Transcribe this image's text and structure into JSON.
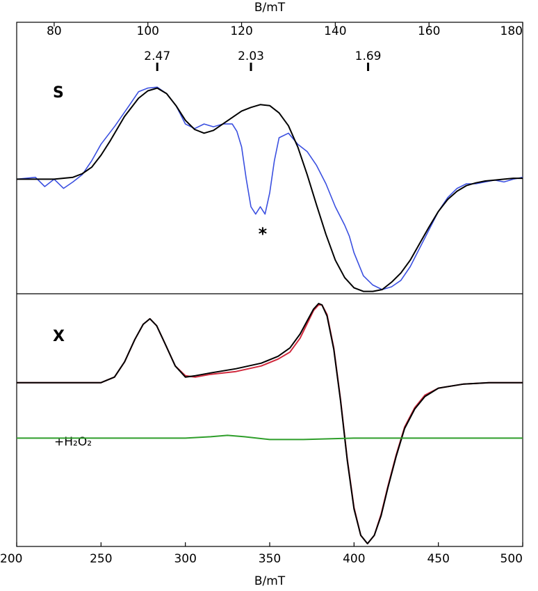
{
  "chart_data": [
    {
      "panel": "S",
      "type": "line",
      "panel_label": "S",
      "xlabel": "B/mT",
      "xlim": [
        72,
        180
      ],
      "xticks": [
        80,
        100,
        120,
        140,
        160,
        180
      ],
      "ylim": [
        -1.2,
        1.1
      ],
      "g_markers": [
        {
          "label": "2.47",
          "x": 102
        },
        {
          "label": "2.03",
          "x": 122
        },
        {
          "label": "1.69",
          "x": 147
        }
      ],
      "annotations": [
        {
          "text": "*",
          "x": 124.5,
          "y": -0.55
        }
      ],
      "series": [
        {
          "color": "#3a4fe0",
          "x": [
            72,
            76,
            78,
            80,
            82,
            84,
            86,
            88,
            90,
            93,
            96,
            98,
            100,
            102,
            104,
            106,
            108,
            110,
            112,
            114,
            116,
            118,
            119,
            120,
            121,
            122,
            123,
            124,
            125,
            126,
            127,
            128,
            130,
            132,
            134,
            136,
            138,
            140,
            142,
            143,
            144,
            146,
            148,
            150,
            152,
            154,
            156,
            158,
            160,
            162,
            164,
            166,
            168,
            170,
            172,
            174,
            176,
            178,
            180
          ],
          "y": [
            0.0,
            0.02,
            -0.08,
            0.0,
            -0.1,
            -0.03,
            0.05,
            0.2,
            0.38,
            0.58,
            0.8,
            0.95,
            0.99,
            1.0,
            0.93,
            0.8,
            0.6,
            0.55,
            0.6,
            0.57,
            0.6,
            0.6,
            0.52,
            0.35,
            0.0,
            -0.3,
            -0.38,
            -0.3,
            -0.38,
            -0.15,
            0.2,
            0.45,
            0.5,
            0.38,
            0.3,
            0.15,
            -0.05,
            -0.3,
            -0.5,
            -0.62,
            -0.8,
            -1.05,
            -1.15,
            -1.2,
            -1.17,
            -1.1,
            -0.95,
            -0.75,
            -0.55,
            -0.35,
            -0.2,
            -0.1,
            -0.05,
            -0.05,
            -0.03,
            -0.01,
            -0.03,
            0.0,
            0.02
          ]
        },
        {
          "color": "#000000",
          "x": [
            72,
            76,
            80,
            84,
            86,
            88,
            90,
            92,
            95,
            98,
            100,
            102,
            104,
            106,
            108,
            110,
            112,
            114,
            116,
            118,
            120,
            122,
            124,
            126,
            128,
            130,
            132,
            134,
            136,
            138,
            140,
            142,
            144,
            146,
            148,
            150,
            152,
            154,
            156,
            158,
            160,
            162,
            164,
            166,
            168,
            170,
            172,
            174,
            176,
            178,
            180
          ],
          "y": [
            0.0,
            0.0,
            0.0,
            0.02,
            0.06,
            0.13,
            0.26,
            0.42,
            0.68,
            0.88,
            0.96,
            0.99,
            0.93,
            0.8,
            0.64,
            0.54,
            0.5,
            0.53,
            0.6,
            0.67,
            0.74,
            0.78,
            0.81,
            0.8,
            0.72,
            0.58,
            0.35,
            0.05,
            -0.28,
            -0.6,
            -0.88,
            -1.07,
            -1.18,
            -1.22,
            -1.22,
            -1.2,
            -1.12,
            -1.02,
            -0.88,
            -0.7,
            -0.52,
            -0.35,
            -0.22,
            -0.13,
            -0.07,
            -0.04,
            -0.02,
            -0.01,
            0.0,
            0.01,
            0.01
          ]
        }
      ]
    },
    {
      "panel": "X",
      "type": "line",
      "panel_label": "X",
      "annotation_label": "+H₂O₂",
      "xlabel": "B/mT",
      "xlim": [
        200,
        500
      ],
      "xticks": [
        200,
        250,
        300,
        350,
        400,
        450,
        500
      ],
      "ylim": [
        -1.15,
        0.6
      ],
      "series": [
        {
          "color": "#d0283c",
          "x": [
            200,
            230,
            250,
            258,
            264,
            270,
            275,
            279,
            283,
            288,
            294,
            300,
            306,
            315,
            330,
            345,
            355,
            362,
            368,
            372,
            376,
            379,
            381,
            384,
            388,
            392,
            396,
            400,
            404,
            408,
            412,
            416,
            420,
            425,
            430,
            436,
            442,
            450,
            465,
            480,
            500
          ],
          "y": [
            0.0,
            0.0,
            0.0,
            0.04,
            0.15,
            0.31,
            0.42,
            0.46,
            0.41,
            0.28,
            0.12,
            0.05,
            0.04,
            0.06,
            0.08,
            0.12,
            0.17,
            0.22,
            0.32,
            0.42,
            0.52,
            0.56,
            0.56,
            0.49,
            0.25,
            -0.12,
            -0.55,
            -0.9,
            -1.1,
            -1.16,
            -1.1,
            -0.95,
            -0.75,
            -0.52,
            -0.32,
            -0.18,
            -0.09,
            -0.04,
            -0.01,
            0.0,
            0.0
          ]
        },
        {
          "color": "#000000",
          "x": [
            200,
            230,
            250,
            258,
            264,
            270,
            275,
            279,
            283,
            288,
            294,
            300,
            306,
            315,
            330,
            345,
            355,
            362,
            368,
            372,
            376,
            379,
            381,
            384,
            388,
            392,
            396,
            400,
            404,
            408,
            412,
            416,
            420,
            425,
            430,
            436,
            442,
            450,
            465,
            480,
            500
          ],
          "y": [
            0.0,
            0.0,
            0.0,
            0.04,
            0.15,
            0.31,
            0.42,
            0.46,
            0.41,
            0.28,
            0.12,
            0.04,
            0.05,
            0.07,
            0.1,
            0.14,
            0.19,
            0.25,
            0.35,
            0.44,
            0.53,
            0.57,
            0.56,
            0.48,
            0.24,
            -0.13,
            -0.56,
            -0.91,
            -1.1,
            -1.16,
            -1.1,
            -0.96,
            -0.76,
            -0.53,
            -0.33,
            -0.19,
            -0.1,
            -0.04,
            -0.01,
            0.0,
            0.0
          ]
        },
        {
          "color": "#2e9e2a",
          "x": [
            200,
            250,
            300,
            315,
            325,
            335,
            350,
            370,
            400,
            450,
            500
          ],
          "y": [
            -0.4,
            -0.4,
            -0.4,
            -0.39,
            -0.38,
            -0.39,
            -0.41,
            -0.41,
            -0.4,
            -0.4,
            -0.4
          ]
        }
      ]
    }
  ]
}
